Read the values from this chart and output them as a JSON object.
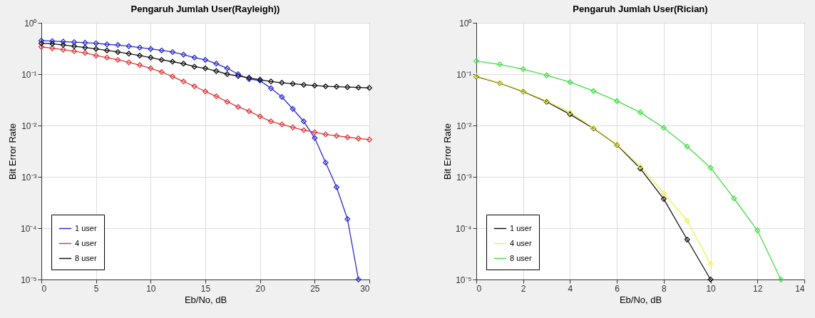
{
  "chart_data": [
    {
      "type": "line",
      "title": "Pengaruh Jumlah User(Rayleigh))",
      "xlabel": "Eb/No, dB",
      "ylabel": "Bit Error Rate",
      "log": "y",
      "grid": true,
      "legend": "bottom left",
      "marker": "diamond",
      "line_style": "solid",
      "xlim": [
        0,
        30
      ],
      "xticks": [
        0,
        5,
        10,
        15,
        20,
        25,
        30
      ],
      "ylim": [
        1e-05,
        1
      ],
      "yticks": [
        {
          "value": 1e-05,
          "label": "10⁻⁵"
        },
        {
          "value": 0.0001,
          "label": "10⁻⁴"
        },
        {
          "value": 0.001,
          "label": "10⁻³"
        },
        {
          "value": 0.01,
          "label": "10⁻²"
        },
        {
          "value": 0.1,
          "label": "10⁻¹"
        },
        {
          "value": 1,
          "label": "10⁰"
        }
      ],
      "series": [
        {
          "name": "1 user",
          "color": "#2a2ad6",
          "x": [
            0,
            1,
            2,
            3,
            4,
            5,
            6,
            7,
            8,
            9,
            10,
            11,
            12,
            13,
            14,
            15,
            16,
            17,
            18,
            19,
            20,
            21,
            22,
            23,
            24,
            25,
            26,
            27,
            28,
            29
          ],
          "values": [
            0.45,
            0.44,
            0.43,
            0.42,
            0.41,
            0.4,
            0.38,
            0.37,
            0.35,
            0.33,
            0.31,
            0.29,
            0.27,
            0.24,
            0.21,
            0.19,
            0.16,
            0.13,
            0.1,
            0.08,
            0.075,
            0.053,
            0.036,
            0.021,
            0.012,
            0.0057,
            0.0019,
            0.00063,
            0.00015,
            1e-05
          ]
        },
        {
          "name": "4 user",
          "color": "#e03a3a",
          "x": [
            0,
            1,
            2,
            3,
            4,
            5,
            6,
            7,
            8,
            9,
            10,
            11,
            12,
            13,
            14,
            15,
            16,
            17,
            18,
            19,
            20,
            21,
            22,
            23,
            24,
            25,
            26,
            27,
            28,
            29,
            30
          ],
          "values": [
            0.34,
            0.32,
            0.3,
            0.28,
            0.26,
            0.23,
            0.21,
            0.19,
            0.17,
            0.15,
            0.13,
            0.11,
            0.09,
            0.072,
            0.058,
            0.046,
            0.037,
            0.029,
            0.023,
            0.019,
            0.015,
            0.012,
            0.0105,
            0.0092,
            0.0081,
            0.0074,
            0.0067,
            0.0063,
            0.0059,
            0.0056,
            0.0053
          ]
        },
        {
          "name": "8 user",
          "color": "#111111",
          "x": [
            0,
            1,
            2,
            3,
            4,
            5,
            6,
            7,
            8,
            9,
            10,
            11,
            12,
            13,
            14,
            15,
            16,
            17,
            18,
            19,
            20,
            21,
            22,
            23,
            24,
            25,
            26,
            27,
            28,
            29,
            30
          ],
          "values": [
            0.4,
            0.39,
            0.37,
            0.35,
            0.33,
            0.31,
            0.29,
            0.27,
            0.25,
            0.23,
            0.21,
            0.19,
            0.175,
            0.16,
            0.14,
            0.13,
            0.115,
            0.1,
            0.092,
            0.085,
            0.078,
            0.072,
            0.068,
            0.065,
            0.062,
            0.06,
            0.058,
            0.057,
            0.056,
            0.055,
            0.054
          ]
        }
      ]
    },
    {
      "type": "line",
      "title": "Pengaruh Jumlah User(Rician)",
      "xlabel": "Eb/No, dB",
      "ylabel": "Bit Error Rate",
      "log": "y",
      "grid": true,
      "legend": "bottom left",
      "marker": "diamond",
      "line_style": "solid",
      "xlim": [
        0,
        14
      ],
      "xticks": [
        0,
        2,
        4,
        6,
        8,
        10,
        12,
        14
      ],
      "ylim": [
        1e-05,
        1
      ],
      "yticks": [
        {
          "value": 1e-05,
          "label": "10⁻⁵"
        },
        {
          "value": 0.0001,
          "label": "10⁻⁴"
        },
        {
          "value": 0.001,
          "label": "10⁻³"
        },
        {
          "value": 0.01,
          "label": "10⁻²"
        },
        {
          "value": 0.1,
          "label": "10⁻¹"
        },
        {
          "value": 1,
          "label": "10⁰"
        }
      ],
      "series": [
        {
          "name": "1 user",
          "color": "#111111",
          "x": [
            0,
            1,
            2,
            3,
            4,
            5,
            6,
            7,
            8,
            9,
            10
          ],
          "values": [
            0.09,
            0.067,
            0.046,
            0.029,
            0.0165,
            0.0088,
            0.0042,
            0.00145,
            0.00037,
            6e-05,
            1e-05
          ]
        },
        {
          "name": "4 user",
          "color": "#f0f050",
          "x": [
            0,
            1,
            2,
            3,
            4,
            5,
            6,
            7,
            8,
            9,
            10
          ],
          "values": [
            0.092,
            0.068,
            0.047,
            0.03,
            0.018,
            0.009,
            0.0043,
            0.0016,
            0.00048,
            0.00014,
            2e-05
          ]
        },
        {
          "name": "8 user",
          "color": "#44dd44",
          "x": [
            0,
            1,
            2,
            3,
            4,
            5,
            6,
            7,
            8,
            9,
            10,
            11,
            12,
            13
          ],
          "values": [
            0.18,
            0.155,
            0.125,
            0.095,
            0.07,
            0.047,
            0.03,
            0.018,
            0.009,
            0.0039,
            0.0015,
            0.00038,
            9e-05,
            1e-05
          ]
        }
      ]
    }
  ]
}
